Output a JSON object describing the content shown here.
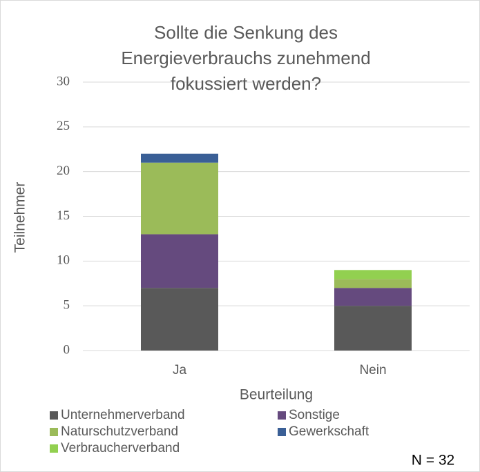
{
  "chart_data": {
    "type": "stacked_bar",
    "title": "Sollte die Senkung des Energieverbrauchs zunehmend fokussiert werden?",
    "categories": [
      "Ja",
      "Nein"
    ],
    "series": [
      {
        "name": "Unternehmerverband",
        "color": "#595959",
        "values": [
          7,
          5
        ]
      },
      {
        "name": "Sonstige",
        "color": "#654a7e",
        "values": [
          6,
          2
        ]
      },
      {
        "name": "Naturschutzverband",
        "color": "#9bbb59",
        "values": [
          8,
          1
        ]
      },
      {
        "name": "Gewerkschaft",
        "color": "#3a5f96",
        "values": [
          1,
          0
        ]
      },
      {
        "name": "Verbraucherverband",
        "color": "#92d050",
        "values": [
          0,
          1
        ]
      }
    ],
    "ylabel": "Teilnehmer",
    "xlabel": "Beurteilung",
    "ylim": [
      0,
      30
    ],
    "yticks": [
      0,
      5,
      10,
      15,
      20,
      25,
      30
    ],
    "grid": true,
    "legend": "bottom",
    "annotation": "N = 32"
  }
}
